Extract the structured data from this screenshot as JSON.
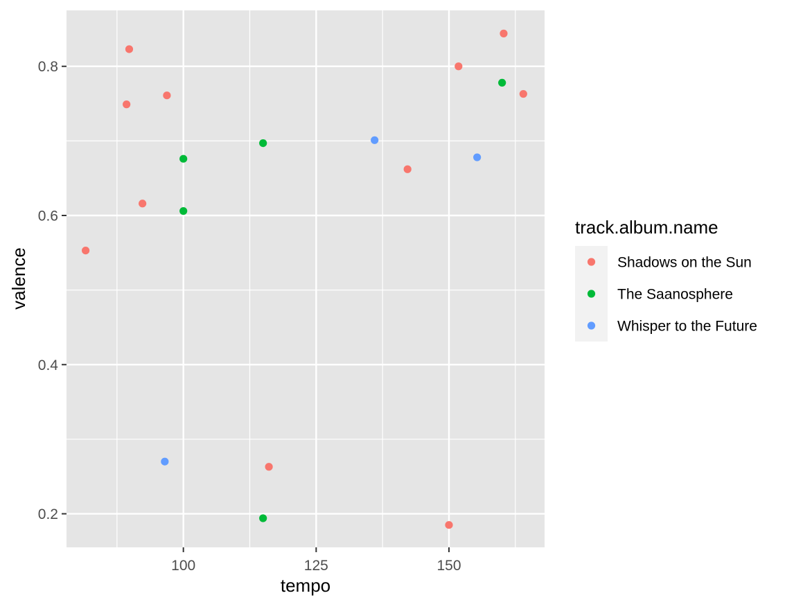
{
  "chart_data": {
    "type": "scatter",
    "title": "",
    "xlabel": "tempo",
    "ylabel": "valence",
    "xlim": [
      78,
      168
    ],
    "ylim": [
      0.155,
      0.875
    ],
    "x_ticks": [
      100,
      125,
      150
    ],
    "x_minor_ticks": [
      87.5,
      112.5,
      137.5,
      162.5
    ],
    "y_ticks": [
      0.2,
      0.4,
      0.6,
      0.8
    ],
    "y_minor_ticks": [
      0.3,
      0.5,
      0.7
    ],
    "x_tick_labels": [
      "100",
      "125",
      "150"
    ],
    "y_tick_labels": [
      "0.2",
      "0.4",
      "0.6",
      "0.8"
    ],
    "grid": true,
    "panel_background": "#E5E5E5",
    "legend": {
      "title": "track.album.name",
      "placement": "right"
    },
    "series": [
      {
        "name": "Shadows on the Sun",
        "color": "#F8766D",
        "points": [
          [
            81.6,
            0.553
          ],
          [
            89.3,
            0.749
          ],
          [
            89.8,
            0.823
          ],
          [
            92.3,
            0.616
          ],
          [
            96.9,
            0.761
          ],
          [
            116.1,
            0.263
          ],
          [
            142.2,
            0.662
          ],
          [
            150.0,
            0.185
          ],
          [
            151.8,
            0.8
          ],
          [
            160.3,
            0.844
          ],
          [
            164.0,
            0.763
          ]
        ]
      },
      {
        "name": "The Saanosphere",
        "color": "#00BA38",
        "points": [
          [
            100.0,
            0.676
          ],
          [
            100.0,
            0.606
          ],
          [
            115.0,
            0.697
          ],
          [
            115.0,
            0.194
          ],
          [
            160.0,
            0.778
          ]
        ]
      },
      {
        "name": "Whisper to the Future",
        "color": "#619CFF",
        "points": [
          [
            96.5,
            0.27
          ],
          [
            136.0,
            0.701
          ],
          [
            155.3,
            0.678
          ]
        ]
      }
    ]
  }
}
